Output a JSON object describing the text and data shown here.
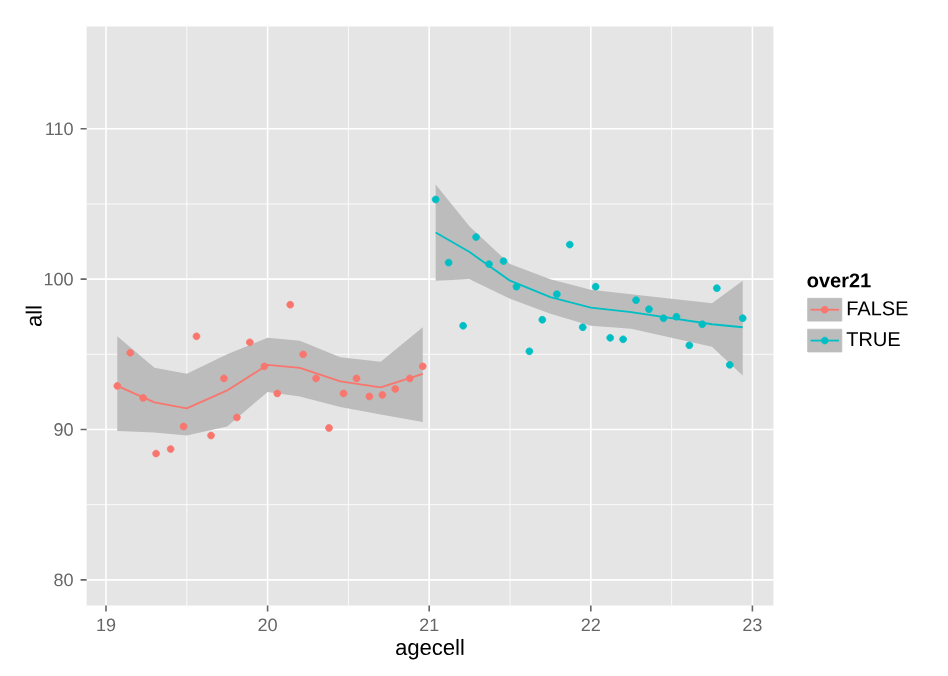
{
  "chart_data": {
    "type": "scatter",
    "xlabel": "agecell",
    "ylabel": "all",
    "legend_title": "over21",
    "xlim": [
      18.88,
      23.13
    ],
    "ylim": [
      78.3,
      116.8
    ],
    "xticks": [
      19,
      20,
      21,
      22,
      23
    ],
    "yticks": [
      80,
      90,
      100,
      110
    ],
    "grid": true,
    "legend": "right",
    "marker": "circle",
    "series": [
      {
        "type": "line",
        "marker": "none",
        "color": "#f8766d",
        "x": [
          19.07,
          19.3,
          19.5,
          19.75,
          20.0,
          20.2,
          20.45,
          20.7,
          20.96
        ],
        "values": [
          92.9,
          91.8,
          91.4,
          92.6,
          94.3,
          94.1,
          93.2,
          92.8,
          93.7
        ],
        "lower": [
          89.9,
          89.8,
          89.6,
          90.2,
          92.5,
          92.2,
          91.5,
          91.0,
          90.5
        ],
        "upper": [
          96.2,
          94.1,
          93.7,
          95.0,
          96.1,
          95.9,
          94.8,
          94.5,
          96.8
        ]
      },
      {
        "type": "line",
        "marker": "none",
        "color": "#00bfc4",
        "x": [
          21.04,
          21.25,
          21.5,
          21.75,
          22.0,
          22.25,
          22.5,
          22.75,
          22.94
        ],
        "values": [
          103.1,
          101.8,
          99.9,
          98.8,
          98.1,
          97.8,
          97.4,
          97.0,
          96.8
        ],
        "lower": [
          99.9,
          100.0,
          98.7,
          97.7,
          96.9,
          96.7,
          96.1,
          95.5,
          93.6
        ],
        "upper": [
          106.3,
          103.5,
          101.0,
          100.0,
          99.3,
          99.0,
          98.7,
          98.4,
          99.9
        ]
      },
      {
        "name": "FALSE",
        "color": "#f8766d",
        "x": [
          19.07,
          19.15,
          19.23,
          19.31,
          19.4,
          19.48,
          19.56,
          19.65,
          19.73,
          19.81,
          19.89,
          19.98,
          20.06,
          20.14,
          20.22,
          20.3,
          20.38,
          20.47,
          20.55,
          20.63,
          20.71,
          20.79,
          20.88,
          20.96
        ],
        "values": [
          92.9,
          95.1,
          92.1,
          88.4,
          88.7,
          90.2,
          96.2,
          89.6,
          93.4,
          90.8,
          95.8,
          94.2,
          92.4,
          98.3,
          95.0,
          93.4,
          90.1,
          92.4,
          93.4,
          92.2,
          92.3,
          92.7,
          93.4,
          94.2
        ]
      },
      {
        "name": "TRUE",
        "color": "#00bfc4",
        "x": [
          21.04,
          21.12,
          21.21,
          21.29,
          21.37,
          21.46,
          21.54,
          21.62,
          21.7,
          21.79,
          21.87,
          21.95,
          22.03,
          22.12,
          22.2,
          22.28,
          22.36,
          22.45,
          22.53,
          22.61,
          22.69,
          22.78,
          22.86,
          22.94
        ],
        "values": [
          105.3,
          101.1,
          96.9,
          102.8,
          101.0,
          101.2,
          99.5,
          95.2,
          97.3,
          99.0,
          102.3,
          96.8,
          99.5,
          96.1,
          96.0,
          98.6,
          98.0,
          97.4,
          97.5,
          95.6,
          97.0,
          99.4,
          94.3,
          97.4
        ]
      }
    ]
  }
}
